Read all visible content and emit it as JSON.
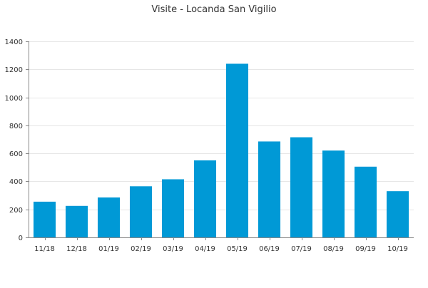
{
  "chart_data": {
    "type": "bar",
    "title": "Visite - Locanda San Vigilio",
    "xlabel": "",
    "ylabel": "",
    "categories": [
      "11/18",
      "12/18",
      "01/19",
      "02/19",
      "03/19",
      "04/19",
      "05/19",
      "06/19",
      "07/19",
      "08/19",
      "09/19",
      "10/19"
    ],
    "values": [
      255,
      225,
      285,
      365,
      415,
      550,
      1240,
      685,
      715,
      620,
      505,
      330
    ],
    "ylim": [
      0,
      1400
    ],
    "yticks": [
      0,
      200,
      400,
      600,
      800,
      1000,
      1200,
      1400
    ],
    "grid": true,
    "legend": "none",
    "bar_color": "#0099d6"
  }
}
